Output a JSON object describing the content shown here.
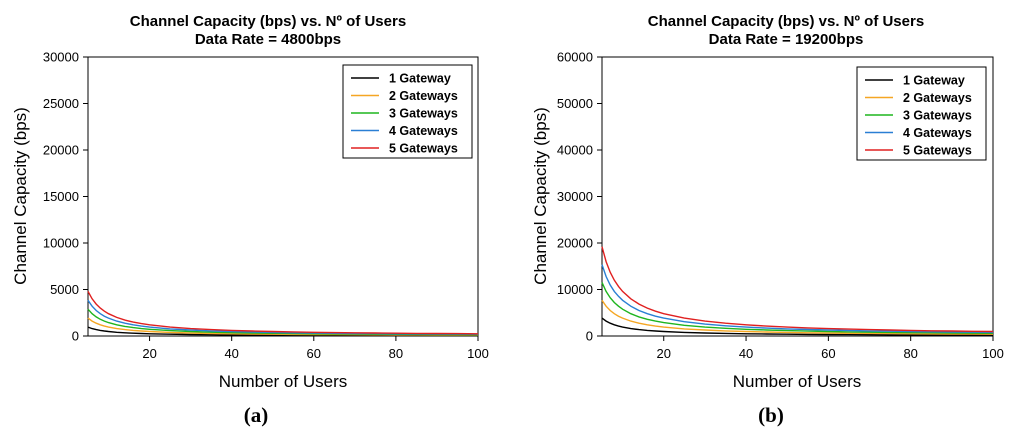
{
  "chart_data": [
    {
      "type": "line",
      "title": "Channel Capacity (bps) vs. Nº of Users",
      "subtitle": "Data Rate = 4800bps",
      "xlabel": "Number of Users",
      "ylabel": "Channel Capacity (bps)",
      "xlim": [
        5,
        100
      ],
      "ylim": [
        0,
        30000
      ],
      "xticks": [
        20,
        40,
        60,
        80,
        100
      ],
      "yticks": [
        0,
        5000,
        10000,
        15000,
        20000,
        25000,
        30000
      ],
      "legend_position": "top-right",
      "panel_label": "(a)",
      "data_rate": 4800,
      "x": [
        5,
        6,
        7,
        8,
        9,
        10,
        12,
        14,
        16,
        18,
        20,
        25,
        30,
        35,
        40,
        45,
        50,
        55,
        60,
        65,
        70,
        75,
        80,
        85,
        90,
        95,
        100
      ],
      "series": [
        {
          "name": "1 Gateway",
          "color": "#000000",
          "values": [
            960,
            800,
            686,
            600,
            533,
            480,
            400,
            343,
            300,
            267,
            240,
            192,
            160,
            137,
            120,
            107,
            96,
            87,
            80,
            74,
            69,
            64,
            60,
            56,
            53,
            51,
            48
          ]
        },
        {
          "name": "2 Gateways",
          "color": "#f5a623",
          "values": [
            1920,
            1600,
            1371,
            1200,
            1067,
            960,
            800,
            686,
            600,
            533,
            480,
            384,
            320,
            274,
            240,
            213,
            192,
            175,
            160,
            148,
            137,
            128,
            120,
            113,
            107,
            101,
            96
          ]
        },
        {
          "name": "3 Gateways",
          "color": "#1fb51f",
          "values": [
            2880,
            2400,
            2057,
            1800,
            1600,
            1440,
            1200,
            1029,
            900,
            800,
            720,
            576,
            480,
            411,
            360,
            320,
            288,
            262,
            240,
            222,
            206,
            192,
            180,
            169,
            160,
            152,
            144
          ]
        },
        {
          "name": "4 Gateways",
          "color": "#2a7fd4",
          "values": [
            3840,
            3200,
            2743,
            2400,
            2133,
            1920,
            1600,
            1371,
            1200,
            1067,
            960,
            768,
            640,
            549,
            480,
            427,
            384,
            349,
            320,
            295,
            274,
            256,
            240,
            226,
            213,
            202,
            192
          ]
        },
        {
          "name": "5 Gateways",
          "color": "#e02020",
          "values": [
            4800,
            4000,
            3429,
            3000,
            2667,
            2400,
            2000,
            1714,
            1500,
            1333,
            1200,
            960,
            800,
            686,
            600,
            533,
            480,
            436,
            400,
            369,
            343,
            320,
            300,
            282,
            267,
            253,
            240
          ]
        }
      ]
    },
    {
      "type": "line",
      "title": "Channel Capacity (bps) vs. Nº of Users",
      "subtitle": "Data Rate = 19200bps",
      "xlabel": "Number of Users",
      "ylabel": "Channel Capacity (bps)",
      "xlim": [
        5,
        100
      ],
      "ylim": [
        0,
        60000
      ],
      "xticks": [
        20,
        40,
        60,
        80,
        100
      ],
      "yticks": [
        0,
        10000,
        20000,
        30000,
        40000,
        50000,
        60000
      ],
      "legend_position": "top-right",
      "panel_label": "(b)",
      "data_rate": 19200,
      "x": [
        5,
        6,
        7,
        8,
        9,
        10,
        12,
        14,
        16,
        18,
        20,
        25,
        30,
        35,
        40,
        45,
        50,
        55,
        60,
        65,
        70,
        75,
        80,
        85,
        90,
        95,
        100
      ],
      "series": [
        {
          "name": "1 Gateway",
          "color": "#000000",
          "values": [
            3840,
            3200,
            2743,
            2400,
            2133,
            1920,
            1600,
            1371,
            1200,
            1067,
            960,
            768,
            640,
            549,
            480,
            427,
            384,
            349,
            320,
            295,
            274,
            256,
            240,
            226,
            213,
            202,
            192
          ]
        },
        {
          "name": "2 Gateways",
          "color": "#f5a623",
          "values": [
            7680,
            6400,
            5486,
            4800,
            4267,
            3840,
            3200,
            2743,
            2400,
            2133,
            1920,
            1536,
            1280,
            1097,
            960,
            853,
            768,
            698,
            640,
            591,
            549,
            512,
            480,
            452,
            427,
            404,
            384
          ]
        },
        {
          "name": "3 Gateways",
          "color": "#1fb51f",
          "values": [
            11520,
            9600,
            8229,
            7200,
            6400,
            5760,
            4800,
            4114,
            3600,
            3200,
            2880,
            2304,
            1920,
            1646,
            1440,
            1280,
            1152,
            1047,
            960,
            886,
            823,
            768,
            720,
            678,
            640,
            606,
            576
          ]
        },
        {
          "name": "4 Gateways",
          "color": "#2a7fd4",
          "values": [
            15360,
            12800,
            10971,
            9600,
            8533,
            7680,
            6400,
            5486,
            4800,
            4267,
            3840,
            3072,
            2560,
            2194,
            1920,
            1707,
            1536,
            1396,
            1280,
            1182,
            1097,
            1024,
            960,
            904,
            853,
            808,
            768
          ]
        },
        {
          "name": "5 Gateways",
          "color": "#e02020",
          "values": [
            19200,
            16000,
            13714,
            12000,
            10667,
            9600,
            8000,
            6857,
            6000,
            5333,
            4800,
            3840,
            3200,
            2743,
            2400,
            2133,
            1920,
            1745,
            1600,
            1477,
            1371,
            1280,
            1200,
            1129,
            1067,
            1011,
            960
          ]
        }
      ]
    }
  ]
}
